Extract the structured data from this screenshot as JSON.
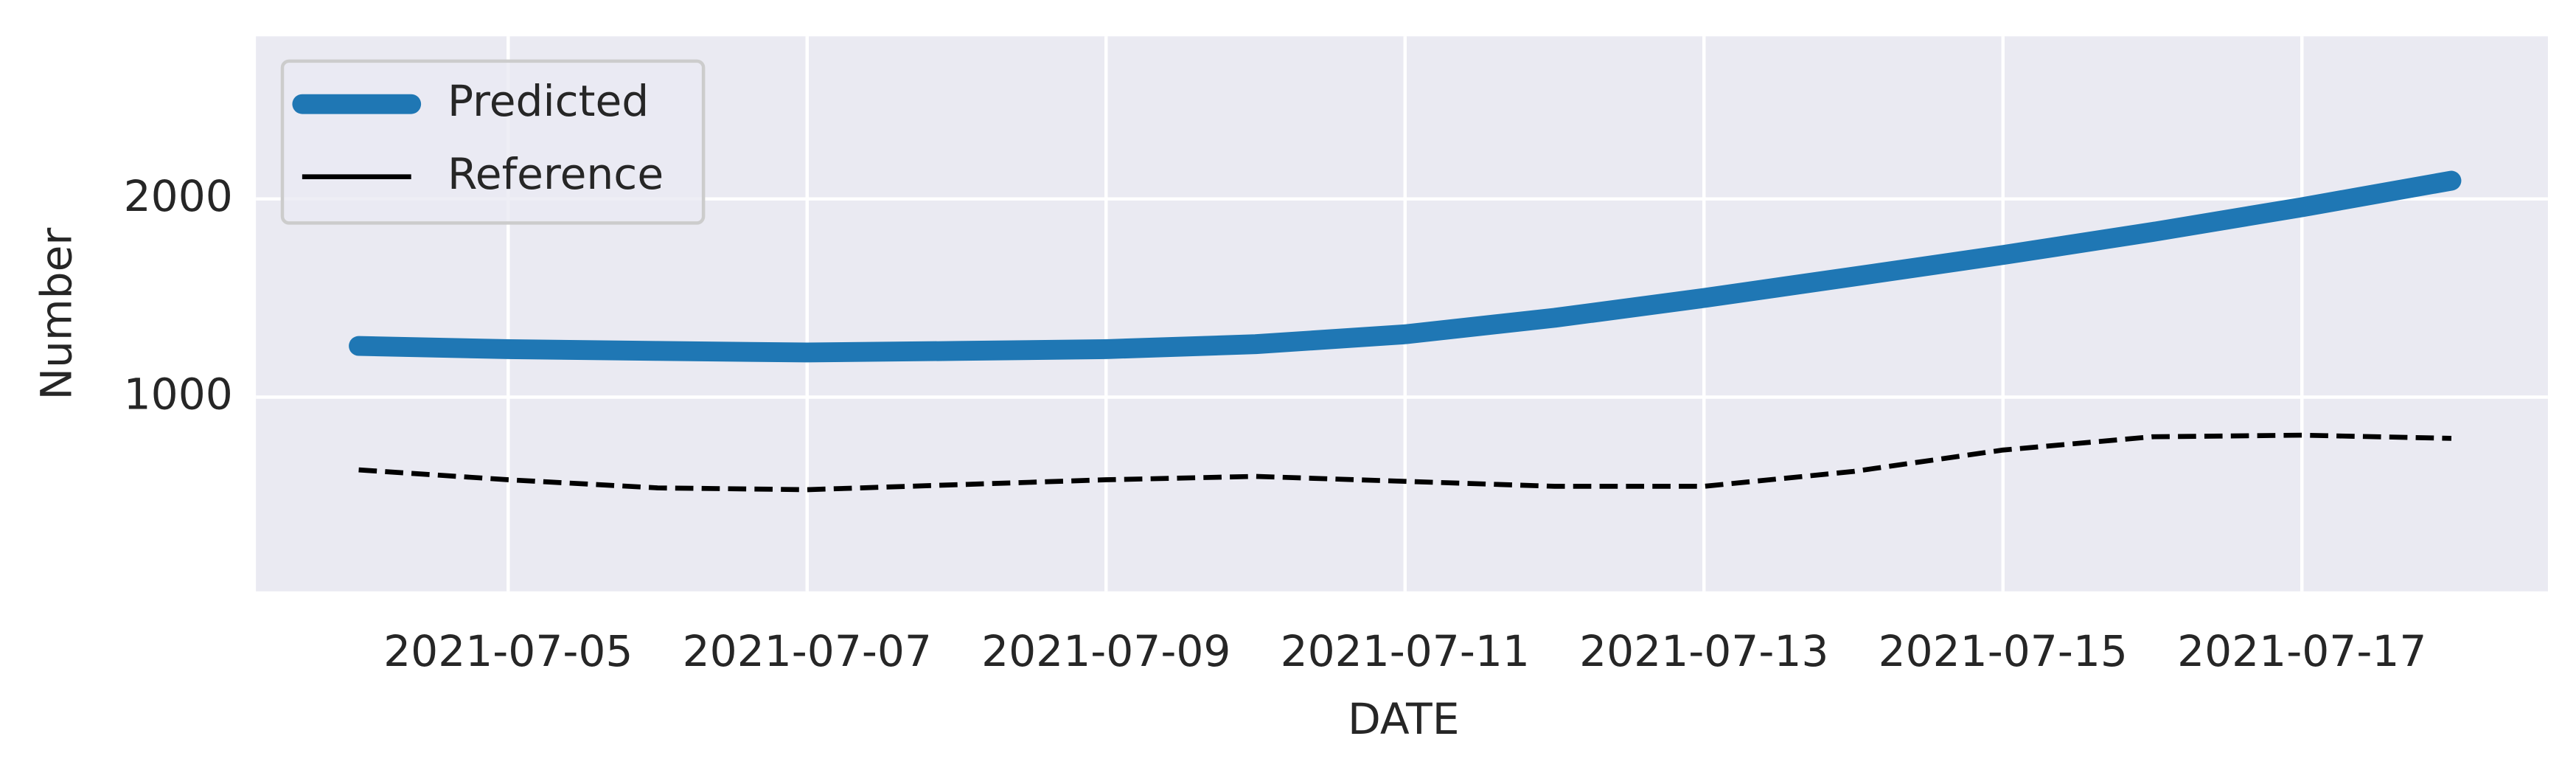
{
  "chart_data": {
    "type": "line",
    "xlabel": "DATE",
    "ylabel": "Number",
    "x": [
      "2021-07-04",
      "2021-07-05",
      "2021-07-06",
      "2021-07-07",
      "2021-07-08",
      "2021-07-09",
      "2021-07-10",
      "2021-07-11",
      "2021-07-12",
      "2021-07-13",
      "2021-07-14",
      "2021-07-15",
      "2021-07-16",
      "2021-07-17",
      "2021-07-18"
    ],
    "series": [
      {
        "name": "Predicted",
        "color": "#1f77b4",
        "linewidth": 12,
        "linestyle": "solid",
        "values": [
          1258,
          1242,
          1233,
          1225,
          1233,
          1242,
          1267,
          1317,
          1400,
          1500,
          1608,
          1717,
          1833,
          1958,
          2092
        ]
      },
      {
        "name": "Reference",
        "color": "#000000",
        "linewidth": 3,
        "linestyle": "dashed",
        "values": [
          633,
          583,
          542,
          533,
          558,
          583,
          600,
          575,
          550,
          550,
          625,
          733,
          800,
          808,
          792
        ]
      }
    ],
    "xlim": [
      "2021-07-03T07:30:00Z",
      "2021-07-18T15:30:00Z"
    ],
    "xticks": [
      "2021-07-05",
      "2021-07-07",
      "2021-07-09",
      "2021-07-11",
      "2021-07-13",
      "2021-07-15",
      "2021-07-17"
    ],
    "ylim": [
      20,
      2820
    ],
    "yticks": [
      1000,
      2000
    ],
    "grid": true,
    "legend": "upper left"
  }
}
